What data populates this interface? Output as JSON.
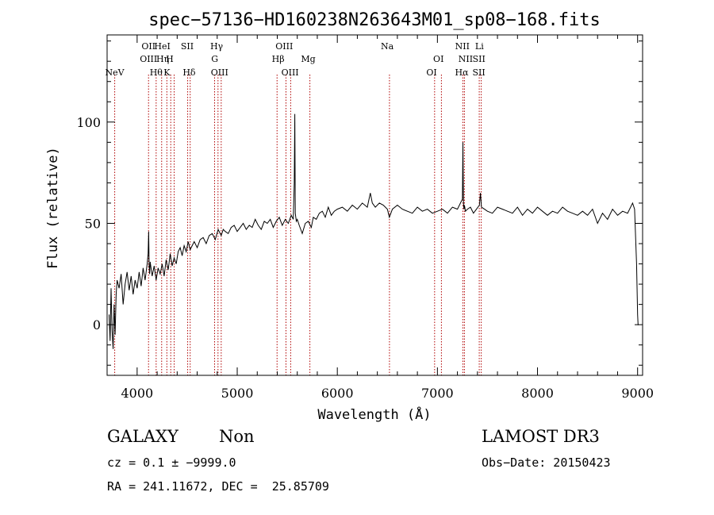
{
  "chart_data": {
    "type": "line",
    "title": "spec−57136−HD160238N263643M01_sp08−168.fits",
    "xlabel": "Wavelength (Å)",
    "ylabel": "Flux (relative)",
    "xlim": [
      3700,
      9050
    ],
    "ylim": [
      -25,
      143
    ],
    "xticks": [
      4000,
      5000,
      6000,
      7000,
      8000,
      9000
    ],
    "yticks": [
      0,
      50,
      100
    ],
    "series": [
      {
        "name": "spectrum",
        "x": [
          3720,
          3730,
          3740,
          3750,
          3760,
          3770,
          3780,
          3790,
          3800,
          3820,
          3840,
          3860,
          3880,
          3900,
          3920,
          3940,
          3960,
          3980,
          4000,
          4020,
          4040,
          4060,
          4080,
          4100,
          4110,
          4115,
          4120,
          4125,
          4130,
          4150,
          4170,
          4190,
          4210,
          4230,
          4250,
          4270,
          4290,
          4310,
          4330,
          4350,
          4370,
          4390,
          4410,
          4430,
          4450,
          4470,
          4490,
          4510,
          4530,
          4550,
          4570,
          4600,
          4630,
          4660,
          4690,
          4720,
          4750,
          4780,
          4810,
          4840,
          4860,
          4880,
          4910,
          4940,
          4970,
          5000,
          5030,
          5060,
          5090,
          5120,
          5150,
          5180,
          5210,
          5240,
          5270,
          5300,
          5330,
          5360,
          5390,
          5420,
          5450,
          5480,
          5510,
          5540,
          5560,
          5570,
          5575,
          5580,
          5590,
          5600,
          5620,
          5650,
          5680,
          5710,
          5740,
          5760,
          5790,
          5820,
          5850,
          5880,
          5910,
          5940,
          5970,
          6000,
          6050,
          6100,
          6150,
          6200,
          6250,
          6300,
          6330,
          6350,
          6380,
          6420,
          6460,
          6500,
          6520,
          6550,
          6600,
          6650,
          6700,
          6750,
          6800,
          6850,
          6900,
          6950,
          7000,
          7050,
          7100,
          7150,
          7200,
          7230,
          7250,
          7255,
          7260,
          7265,
          7270,
          7280,
          7300,
          7330,
          7360,
          7390,
          7420,
          7430,
          7440,
          7470,
          7500,
          7550,
          7600,
          7650,
          7700,
          7750,
          7800,
          7850,
          7900,
          7950,
          8000,
          8050,
          8100,
          8150,
          8200,
          8250,
          8300,
          8350,
          8400,
          8450,
          8500,
          8550,
          8600,
          8650,
          8700,
          8750,
          8800,
          8850,
          8900,
          8950,
          8970,
          8990,
          9000,
          9005,
          9010
        ],
        "values": [
          5,
          -8,
          18,
          -3,
          -12,
          10,
          -5,
          15,
          22,
          18,
          25,
          10,
          20,
          26,
          17,
          24,
          15,
          22,
          18,
          26,
          19,
          28,
          22,
          30,
          35,
          46,
          29,
          25,
          31,
          24,
          29,
          22,
          28,
          25,
          30,
          24,
          32,
          27,
          35,
          29,
          33,
          30,
          36,
          38,
          34,
          39,
          36,
          41,
          37,
          39,
          41,
          38,
          42,
          43,
          40,
          44,
          45,
          42,
          47,
          44,
          47,
          46,
          45,
          48,
          49,
          46,
          48,
          50,
          47,
          49,
          48,
          52,
          49,
          47,
          51,
          50,
          52,
          48,
          51,
          53,
          49,
          52,
          50,
          54,
          52,
          70,
          104,
          55,
          51,
          52,
          49,
          45,
          50,
          51,
          48,
          53,
          52,
          55,
          56,
          53,
          58,
          54,
          56,
          57,
          58,
          56,
          59,
          57,
          60,
          58,
          65,
          60,
          58,
          60,
          59,
          57,
          53,
          57,
          59,
          57,
          56,
          55,
          58,
          56,
          57,
          55,
          56,
          57,
          55,
          58,
          57,
          60,
          62,
          90,
          60,
          57,
          59,
          56,
          57,
          58,
          55,
          57,
          59,
          65,
          58,
          57,
          56,
          55,
          58,
          57,
          56,
          55,
          58,
          54,
          57,
          55,
          58,
          56,
          54,
          56,
          55,
          58,
          56,
          55,
          54,
          56,
          54,
          57,
          50,
          55,
          52,
          57,
          54,
          56,
          55,
          60,
          57,
          30,
          5,
          0,
          0
        ]
      }
    ],
    "emission_lines": [
      {
        "label": "NeV",
        "wl": 3776,
        "row": 2
      },
      {
        "label": "OII",
        "wl": 4114,
        "row": 0
      },
      {
        "label": "OIII",
        "wl": 4114,
        "row": 1
      },
      {
        "label": "Hθ",
        "wl": 4190,
        "row": 2
      },
      {
        "label": "HeI",
        "wl": 4252,
        "row": 0
      },
      {
        "label": "Hη",
        "wl": 4256,
        "row": 1
      },
      {
        "label": "H",
        "wl": 4326,
        "row": 1
      },
      {
        "label": "K",
        "wl": 4297,
        "row": 2
      },
      {
        "label": "SII",
        "wl": 4500,
        "row": 0
      },
      {
        "label": "Hδ",
        "wl": 4520,
        "row": 2
      },
      {
        "label": "Hγ",
        "wl": 4794,
        "row": 0
      },
      {
        "label": "G",
        "wl": 4775,
        "row": 1
      },
      {
        "label": "OIII",
        "wl": 4824,
        "row": 2
      },
      {
        "label": "OIII",
        "wl": 5470,
        "row": 0
      },
      {
        "label": "Hβ",
        "wl": 5409,
        "row": 1
      },
      {
        "label": "OIII",
        "wl": 5528,
        "row": 2
      },
      {
        "label": "Mg",
        "wl": 5709,
        "row": 1
      },
      {
        "label": "Na",
        "wl": 6499,
        "row": 0
      },
      {
        "label": "OI",
        "wl": 7011,
        "row": 1
      },
      {
        "label": "OI",
        "wl": 6942,
        "row": 2
      },
      {
        "label": "NII",
        "wl": 7249,
        "row": 0
      },
      {
        "label": "NII",
        "wl": 7282,
        "row": 1
      },
      {
        "label": "Hα",
        "wl": 7243,
        "row": 2
      },
      {
        "label": "Li",
        "wl": 7420,
        "row": 0
      },
      {
        "label": "SII",
        "wl": 7415,
        "row": 1
      },
      {
        "label": "SII",
        "wl": 7414,
        "row": 2
      }
    ],
    "line_markers_wl": [
      3776,
      4114,
      4190,
      4245,
      4297,
      4336,
      4370,
      4505,
      4530,
      4774,
      4808,
      4840,
      5398,
      5487,
      5534,
      5726,
      6521,
      6972,
      7040,
      7255,
      7270,
      7418,
      7438
    ]
  },
  "info": {
    "obj_class": "GALAXY",
    "subclass": "Non",
    "redshift_line": "cz = 0.1 ± −9999.0",
    "coords_line": "RA = 241.11672, DEC =  25.85709",
    "survey": "LAMOST DR3",
    "obs_date": "Obs−Date: 20150423"
  },
  "colors": {
    "line_marker": "#b00000",
    "axis": "#000000"
  }
}
